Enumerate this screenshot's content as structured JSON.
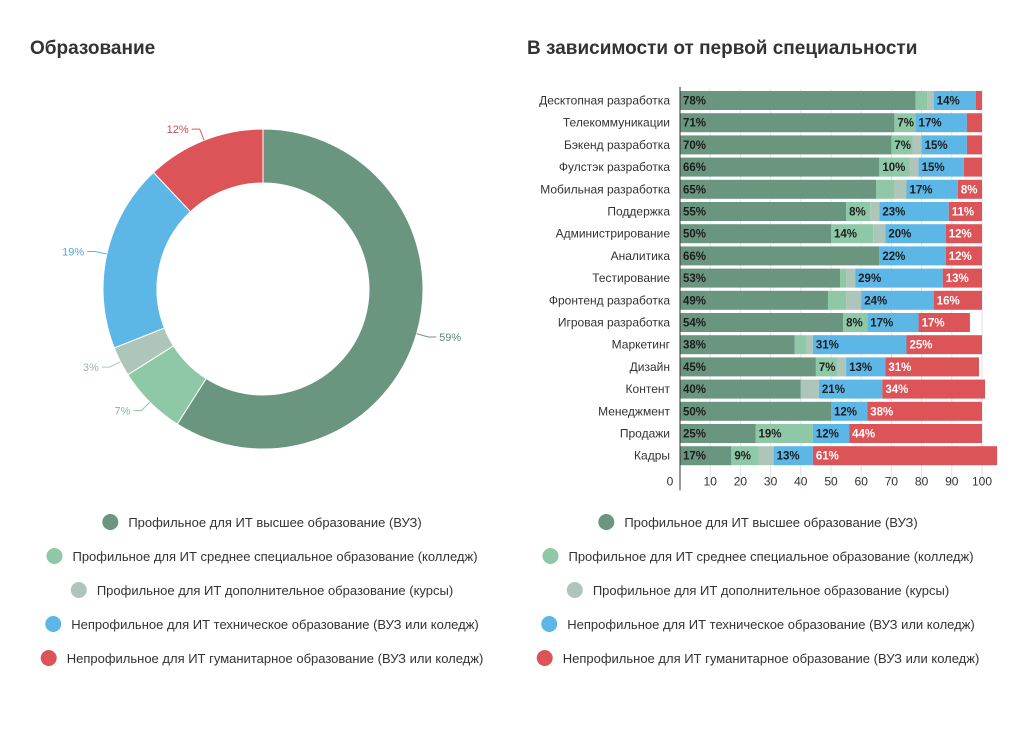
{
  "colors": {
    "profile_vuz": "#6a9680",
    "profile_college": "#8ec8a6",
    "profile_courses": "#aec5b9",
    "nonprofile_tech": "#5cb6e6",
    "nonprofile_hum": "#dc5457"
  },
  "legend": [
    {
      "label": "Профильное для ИТ высшее образование (ВУЗ)",
      "color": "#6a9680"
    },
    {
      "label": "Профильное для ИТ среднее специальное образование (колледж)",
      "color": "#8ec8a6"
    },
    {
      "label": "Профильное для ИТ дополнительное образование (курсы)",
      "color": "#aec5b9"
    },
    {
      "label": "Непрофильное для ИТ техническое образование (ВУЗ или коледж)",
      "color": "#5cb6e6"
    },
    {
      "label": "Непрофильное для ИТ гуманитарное образование (ВУЗ или коледж)",
      "color": "#dc5457"
    }
  ],
  "chart_data": [
    {
      "type": "pie",
      "variant": "donut",
      "title": "Образование",
      "slices": [
        {
          "label": "Профильное для ИТ высшее образование (ВУЗ)",
          "value": 59,
          "color": "#6a9680",
          "display": "59%"
        },
        {
          "label": "Профильное для ИТ среднее специальное образование (колледж)",
          "value": 7,
          "color": "#8ec8a6",
          "display": "7%"
        },
        {
          "label": "Профильное для ИТ дополнительное образование (курсы)",
          "value": 3,
          "color": "#aec5b9",
          "display": "3%"
        },
        {
          "label": "Непрофильное для ИТ техническое образование (ВУЗ или коледж)",
          "value": 19,
          "color": "#5cb6e6",
          "display": "19%"
        },
        {
          "label": "Непрофильное для ИТ гуманитарное образование (ВУЗ или коледж)",
          "value": 12,
          "color": "#dc5457",
          "display": "12%"
        }
      ]
    },
    {
      "type": "bar",
      "orientation": "horizontal",
      "stacked": true,
      "title": "В зависимости от первой специальности",
      "xlim": [
        0,
        100
      ],
      "xticks": [
        "0",
        "10",
        "20",
        "30",
        "40",
        "50",
        "60",
        "70",
        "80",
        "90",
        "100"
      ],
      "grid": true,
      "categories": [
        "Десктопная разработка",
        "Телекоммуникации",
        "Бэкенд разработка",
        "Фулстэк разработка",
        "Мобильная разработка",
        "Поддержка",
        "Администрирование",
        "Аналитика",
        "Тестирование",
        "Фронтенд разработка",
        "Игровая разработка",
        "Маркетинг",
        "Дизайн",
        "Контент",
        "Менеджмент",
        "Продажи",
        "Кадры"
      ],
      "series": [
        {
          "name": "Профильное для ИТ высшее образование (ВУЗ)",
          "color": "#6a9680",
          "values": [
            78,
            71,
            70,
            66,
            65,
            55,
            50,
            66,
            53,
            49,
            54,
            38,
            45,
            40,
            50,
            25,
            17
          ],
          "labels": [
            "78%",
            "71%",
            "70%",
            "66%",
            "65%",
            "55%",
            "50%",
            "66%",
            "53%",
            "49%",
            "54%",
            "38%",
            "45%",
            "40%",
            "50%",
            "25%",
            "17%"
          ]
        },
        {
          "name": "Профильное для ИТ среднее специальное образование (колледж)",
          "color": "#8ec8a6",
          "values": [
            4,
            7,
            7,
            10,
            6,
            8,
            14,
            0,
            2,
            6,
            8,
            4,
            7,
            0,
            0,
            19,
            9
          ],
          "labels": [
            "",
            "7%",
            "7%",
            "10%",
            "",
            "8%",
            "14%",
            "",
            "",
            "",
            "8%",
            "",
            "7%",
            "",
            "",
            "19%",
            "9%"
          ]
        },
        {
          "name": "Профильное для ИТ дополнительное образование (курсы)",
          "color": "#aec5b9",
          "values": [
            2,
            0,
            3,
            3,
            4,
            3,
            4,
            0,
            3,
            5,
            0,
            2,
            3,
            6,
            0,
            0,
            5
          ],
          "labels": [
            "",
            "",
            "",
            "",
            "",
            "",
            "",
            "",
            "",
            "",
            "",
            "",
            "",
            "",
            "",
            "",
            ""
          ]
        },
        {
          "name": "Непрофильное для ИТ техническое образование (ВУЗ или коледж)",
          "color": "#5cb6e6",
          "values": [
            14,
            17,
            15,
            15,
            17,
            23,
            20,
            22,
            29,
            24,
            17,
            31,
            13,
            21,
            12,
            12,
            13
          ],
          "labels": [
            "14%",
            "17%",
            "15%",
            "15%",
            "17%",
            "23%",
            "20%",
            "22%",
            "29%",
            "24%",
            "17%",
            "31%",
            "13%",
            "21%",
            "12%",
            "12%",
            "13%"
          ]
        },
        {
          "name": "Непрофильное для ИТ гуманитарное образование (ВУЗ или коледж)",
          "color": "#dc5457",
          "values": [
            2,
            5,
            5,
            6,
            8,
            11,
            12,
            12,
            13,
            16,
            17,
            25,
            31,
            34,
            38,
            44,
            61
          ],
          "labels": [
            "",
            "",
            "",
            "",
            "8%",
            "11%",
            "12%",
            "12%",
            "13%",
            "16%",
            "17%",
            "25%",
            "31%",
            "34%",
            "38%",
            "44%",
            "61%"
          ]
        }
      ]
    }
  ]
}
